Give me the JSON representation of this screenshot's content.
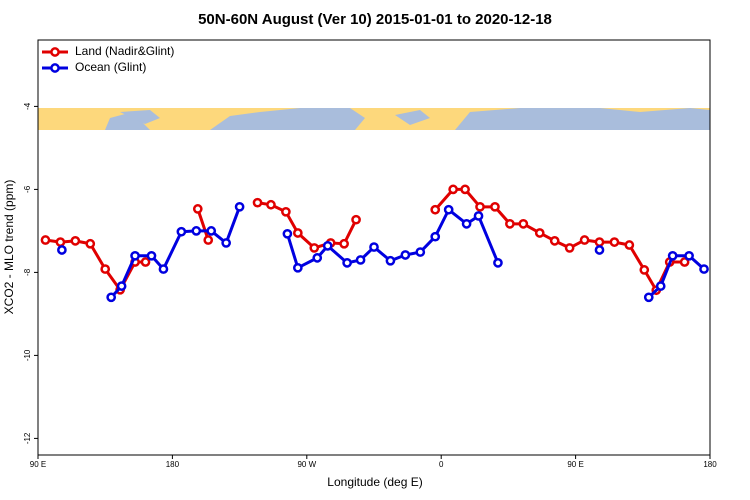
{
  "chart_data": {
    "type": "line",
    "title": "50N-60N August (Ver 10)   2015-01-01 to 2020-12-18",
    "x_label": "Longitude (deg E)",
    "y_label": "XCO2 - MLO trend (ppm)",
    "xlim": [
      90,
      540
    ],
    "ylim": [
      -12.4,
      -2.4
    ],
    "xticks": [
      {
        "value": 90,
        "label": "90 E"
      },
      180,
      {
        "value": 270,
        "label": "90 W"
      },
      {
        "value": 360,
        "label": "0"
      },
      {
        "value": 450,
        "label": "90 E"
      },
      {
        "value": 540,
        "label": "180"
      }
    ],
    "yticks": [
      -4,
      -6,
      -8,
      -10,
      -12
    ],
    "legend": "top-left",
    "series": [
      {
        "name": "Land (Nadir&Glint)",
        "color": "#e00000",
        "x": [
          95,
          105,
          115,
          125,
          135,
          145,
          155,
          162,
          null,
          197,
          204,
          null,
          237,
          246,
          256,
          264,
          275,
          286,
          295,
          303,
          null,
          356,
          368,
          376,
          386,
          396,
          406,
          415,
          426,
          436,
          446,
          456,
          466,
          476,
          486,
          496,
          504,
          513,
          523
        ],
        "values": [
          -7.22,
          -7.27,
          -7.24,
          -7.31,
          -7.92,
          -8.42,
          -7.75,
          -7.75,
          null,
          -6.47,
          -7.22,
          null,
          -6.32,
          -6.37,
          -6.54,
          -7.05,
          -7.41,
          -7.29,
          -7.31,
          -6.73,
          null,
          -6.49,
          -6.0,
          -6.0,
          -6.42,
          -6.42,
          -6.83,
          -6.83,
          -7.05,
          -7.24,
          -7.41,
          -7.22,
          -7.27,
          -7.27,
          -7.34,
          -7.94,
          -8.43,
          -7.75,
          -7.75
        ]
      },
      {
        "name": "Ocean (Glint)",
        "color": "#0000e0",
        "x": [
          106,
          null,
          139,
          146,
          155,
          166,
          174,
          186,
          196,
          206,
          216,
          225,
          null,
          257,
          264,
          277,
          284,
          297,
          306,
          315,
          326,
          336,
          346,
          356,
          365,
          377,
          385,
          398,
          null,
          466,
          null,
          499,
          507,
          515,
          526,
          536
        ],
        "values": [
          -7.46,
          null,
          -8.6,
          -8.33,
          -7.6,
          -7.6,
          -7.92,
          -7.02,
          -7.0,
          -7.0,
          -7.29,
          -6.42,
          null,
          -7.07,
          -7.89,
          -7.65,
          -7.36,
          -7.77,
          -7.7,
          -7.39,
          -7.72,
          -7.58,
          -7.51,
          -7.14,
          -6.49,
          -6.83,
          -6.64,
          -7.77,
          null,
          -7.46,
          null,
          -8.6,
          -8.33,
          -7.6,
          -7.6,
          -7.92
        ]
      }
    ]
  }
}
